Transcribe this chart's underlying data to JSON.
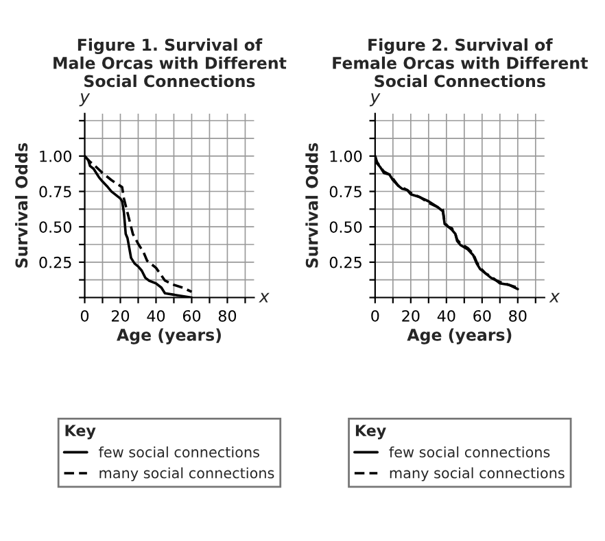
{
  "chart_data": [
    {
      "type": "line",
      "title": "Figure 1. Survival of\nMale Orcas with Different\nSocial Connections",
      "xlabel": "Age (years)",
      "ylabel": "Survival Odds",
      "legend_title": "Key",
      "legend": "bottom",
      "grid": true,
      "annotations": [
        "x",
        "y"
      ],
      "xlim": [
        0,
        95
      ],
      "ylim": [
        0,
        1.3
      ],
      "xticks": [
        0,
        {
          "value": 10,
          "label": null
        },
        20,
        {
          "value": 30,
          "label": null
        },
        40,
        {
          "value": 50,
          "label": null
        },
        60,
        {
          "value": 70,
          "label": null
        },
        80,
        {
          "value": 90,
          "label": null
        }
      ],
      "yticks": [
        {
          "value": 0,
          "label": null
        },
        {
          "value": 0.125,
          "label": null
        },
        {
          "value": 0.25,
          "label": "0.25"
        },
        {
          "value": 0.375,
          "label": null
        },
        {
          "value": 0.5,
          "label": "0.50"
        },
        {
          "value": 0.625,
          "label": null
        },
        {
          "value": 0.75,
          "label": "0.75"
        },
        {
          "value": 0.875,
          "label": null
        },
        {
          "value": 1.0,
          "label": "1.00"
        },
        {
          "value": 1.125,
          "label": null
        },
        {
          "value": 1.25,
          "label": null
        }
      ],
      "series": [
        {
          "name": "few social connections",
          "color": "#000000",
          "line_style": "solid",
          "x": [
            0,
            2,
            3,
            5,
            8,
            10,
            13,
            15,
            20,
            21,
            22,
            23,
            24,
            25,
            26,
            28,
            30,
            32,
            34,
            36,
            40,
            43,
            45,
            50,
            60
          ],
          "values": [
            1.0,
            0.97,
            0.93,
            0.91,
            0.85,
            0.82,
            0.78,
            0.75,
            0.7,
            0.68,
            0.6,
            0.45,
            0.42,
            0.35,
            0.28,
            0.24,
            0.22,
            0.19,
            0.14,
            0.12,
            0.1,
            0.07,
            0.03,
            0.02,
            0.0
          ]
        },
        {
          "name": "many social connections",
          "color": "#000000",
          "line_style": "dashed",
          "x": [
            0,
            3,
            5,
            10,
            15,
            21,
            22,
            24,
            25,
            27,
            30,
            33,
            35,
            40,
            45,
            50,
            55,
            60
          ],
          "values": [
            1.0,
            0.96,
            0.94,
            0.88,
            0.83,
            0.78,
            0.7,
            0.6,
            0.55,
            0.45,
            0.38,
            0.32,
            0.26,
            0.21,
            0.12,
            0.09,
            0.07,
            0.04
          ]
        }
      ]
    },
    {
      "type": "line",
      "title": "Figure 2. Survival of\nFemale Orcas with Different\nSocial Connections",
      "xlabel": "Age (years)",
      "ylabel": "Survival Odds",
      "legend_title": "Key",
      "legend": "bottom",
      "grid": true,
      "annotations": [
        "x",
        "y"
      ],
      "xlim": [
        0,
        95
      ],
      "ylim": [
        0,
        1.3
      ],
      "xticks": [
        0,
        {
          "value": 10,
          "label": null
        },
        20,
        {
          "value": 30,
          "label": null
        },
        40,
        {
          "value": 50,
          "label": null
        },
        60,
        {
          "value": 70,
          "label": null
        },
        80,
        {
          "value": 90,
          "label": null
        }
      ],
      "yticks": [
        {
          "value": 0,
          "label": null
        },
        {
          "value": 0.125,
          "label": null
        },
        {
          "value": 0.25,
          "label": "0.25"
        },
        {
          "value": 0.375,
          "label": null
        },
        {
          "value": 0.5,
          "label": "0.50"
        },
        {
          "value": 0.625,
          "label": null
        },
        {
          "value": 0.75,
          "label": "0.75"
        },
        {
          "value": 0.875,
          "label": null
        },
        {
          "value": 1.0,
          "label": "1.00"
        },
        {
          "value": 1.125,
          "label": null
        },
        {
          "value": 1.25,
          "label": null
        }
      ],
      "series": [
        {
          "name": "few social connections",
          "color": "#000000",
          "line_style": "solid",
          "x": [
            0,
            1,
            3,
            5,
            8,
            10,
            13,
            15,
            18,
            20,
            25,
            30,
            35,
            38,
            39,
            41,
            43,
            45,
            46,
            48,
            52,
            55,
            57,
            59,
            62,
            65,
            68,
            70,
            75,
            80
          ],
          "values": [
            1.0,
            0.95,
            0.92,
            0.88,
            0.87,
            0.83,
            0.79,
            0.77,
            0.76,
            0.73,
            0.71,
            0.68,
            0.64,
            0.61,
            0.52,
            0.5,
            0.48,
            0.45,
            0.4,
            0.37,
            0.34,
            0.3,
            0.24,
            0.2,
            0.17,
            0.14,
            0.12,
            0.1,
            0.09,
            0.06
          ]
        },
        {
          "name": "many social connections",
          "color": "#000000",
          "line_style": "dashed",
          "x": [
            0,
            1,
            3,
            5,
            8,
            10,
            13,
            15,
            18,
            20,
            25,
            30,
            35,
            38,
            39,
            41,
            43,
            45,
            46,
            48,
            52,
            55,
            57,
            59,
            62,
            65,
            68,
            70,
            75,
            80
          ],
          "values": [
            1.0,
            0.96,
            0.92,
            0.89,
            0.87,
            0.84,
            0.79,
            0.78,
            0.76,
            0.74,
            0.71,
            0.67,
            0.64,
            0.62,
            0.53,
            0.5,
            0.49,
            0.45,
            0.41,
            0.38,
            0.35,
            0.31,
            0.25,
            0.21,
            0.17,
            0.15,
            0.12,
            0.11,
            0.09,
            0.07
          ]
        }
      ]
    }
  ]
}
